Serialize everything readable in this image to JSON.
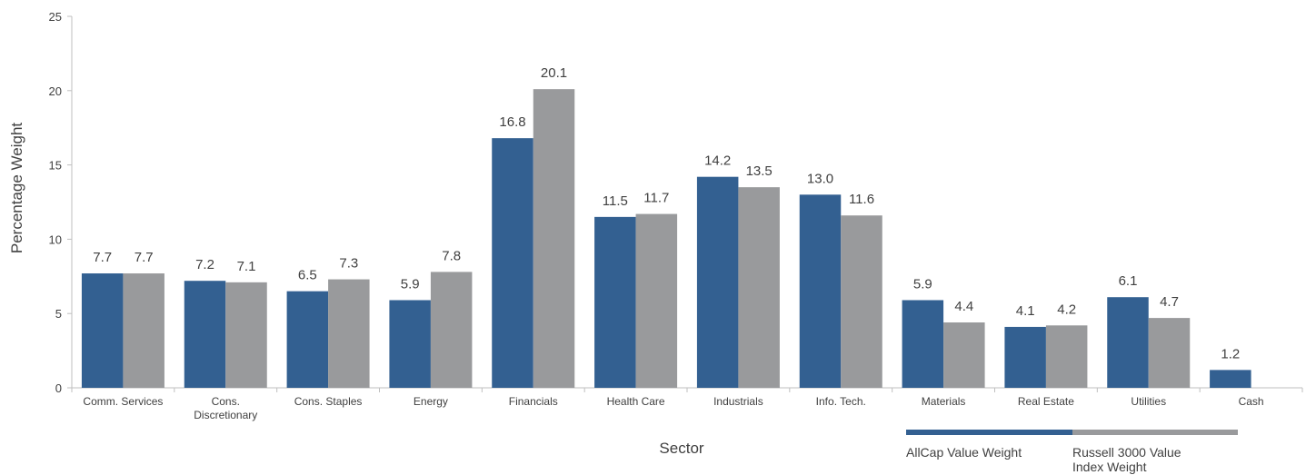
{
  "chart_data": {
    "type": "bar",
    "xlabel": "Sector",
    "ylabel": "Percentage Weight",
    "ylim": [
      0,
      25
    ],
    "yticks": [
      0,
      5,
      10,
      15,
      20,
      25
    ],
    "grid": false,
    "legend_position": "bottom-right",
    "categories": [
      [
        "Comm. Services"
      ],
      [
        "Cons.",
        "Discretionary"
      ],
      [
        "Cons. Staples"
      ],
      [
        "Energy"
      ],
      [
        "Financials"
      ],
      [
        "Health Care"
      ],
      [
        "Industrials"
      ],
      [
        "Info. Tech."
      ],
      [
        "Materials"
      ],
      [
        "Real Estate"
      ],
      [
        "Utilities"
      ],
      [
        "Cash"
      ]
    ],
    "series": [
      {
        "name": "AllCap Value Weight",
        "color": "#336091",
        "values": [
          7.7,
          7.2,
          6.5,
          5.9,
          16.8,
          11.5,
          14.2,
          13.0,
          5.9,
          4.1,
          6.1,
          1.2
        ],
        "labels": [
          "7.7",
          "7.2",
          "6.5",
          "5.9",
          "16.8",
          "11.5",
          "14.2",
          "13.0",
          "5.9",
          "4.1",
          "6.1",
          "1.2"
        ]
      },
      {
        "name": "Russell 3000 Value Index Weight",
        "name_lines": [
          "Russell 3000 Value",
          "Index Weight"
        ],
        "color": "#999a9c",
        "values": [
          7.7,
          7.1,
          7.3,
          7.8,
          20.1,
          11.7,
          13.5,
          11.6,
          4.4,
          4.2,
          4.7,
          null
        ],
        "labels": [
          "7.7",
          "7.1",
          "7.3",
          "7.8",
          "20.1",
          "11.7",
          "13.5",
          "11.6",
          "4.4",
          "4.2",
          "4.7",
          null
        ]
      }
    ]
  }
}
